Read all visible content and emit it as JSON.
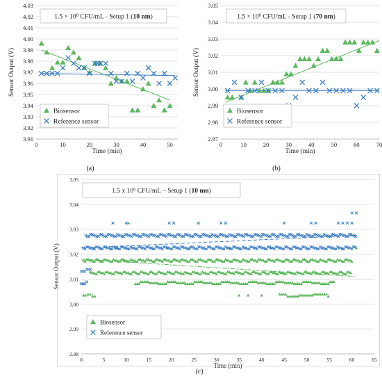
{
  "chart_data": [
    {
      "type": "scatter",
      "panel_label": "(a)",
      "title_parts": {
        "prefix": "1.5 × 10",
        "exp": "8",
        "suffix": " CFU/mL - Setup 1 (",
        "bold": "10 nm",
        "close": ")"
      },
      "xlabel": "Time (min)",
      "ylabel": "Sensor Output  (V)",
      "xlim": [
        0,
        53
      ],
      "ylim": [
        3.91,
        4.03
      ],
      "xticks": [
        0,
        10,
        20,
        30,
        40,
        50
      ],
      "yticks": [
        3.91,
        3.92,
        3.93,
        3.94,
        3.95,
        3.96,
        3.97,
        3.98,
        3.99,
        4.0,
        4.01,
        4.02,
        4.03
      ],
      "ytick_labels": [
        "3.91",
        "3.92",
        "3.93",
        "3.94",
        "3.95",
        "3.96",
        "3.97",
        "3.98",
        "3.99",
        "4.00",
        "4.01",
        "4.02",
        "4.03"
      ],
      "grid": "horizontal",
      "legend": [
        "Biosensor",
        "Reference sensor"
      ],
      "series": [
        {
          "name": "Biosensor",
          "marker": "triangle",
          "color": "#5cb85c",
          "x": [
            2,
            4,
            6,
            8,
            10,
            12,
            14,
            16,
            18,
            20,
            22,
            24,
            26,
            28,
            30,
            32,
            34,
            36,
            38,
            40,
            42,
            44,
            46,
            48,
            50
          ],
          "y": [
            3.996,
            3.988,
            3.974,
            3.979,
            3.979,
            3.992,
            3.988,
            3.983,
            3.974,
            3.97,
            3.978,
            3.978,
            3.974,
            3.96,
            3.965,
            3.962,
            3.962,
            3.936,
            3.936,
            3.955,
            3.96,
            3.94,
            3.945,
            3.936,
            3.94
          ],
          "trend": [
            [
              2,
              3.99
            ],
            [
              50,
              3.945
            ]
          ]
        },
        {
          "name": "Reference sensor",
          "marker": "x",
          "color": "#3a7cc4",
          "x": [
            2,
            4,
            6,
            8,
            10,
            12,
            14,
            16,
            18,
            20,
            22,
            23,
            24,
            26,
            28,
            30,
            32,
            34,
            36,
            38,
            40,
            42,
            44,
            46,
            48,
            50,
            52
          ],
          "y": [
            3.969,
            3.969,
            3.969,
            3.969,
            3.974,
            3.983,
            3.978,
            3.974,
            3.974,
            3.969,
            3.978,
            3.978,
            3.978,
            3.978,
            3.969,
            3.962,
            3.962,
            3.969,
            3.962,
            3.969,
            3.965,
            3.974,
            3.969,
            3.96,
            3.969,
            3.96,
            3.965
          ],
          "trend": [
            [
              2,
              3.969
            ],
            [
              52,
              3.967
            ]
          ]
        }
      ]
    },
    {
      "type": "scatter",
      "panel_label": "(b)",
      "title_parts": {
        "prefix": "1.5 × 10",
        "exp": "8",
        "suffix": " CFU/mL - Setup 1 (",
        "bold": "70 nm",
        "close": ")"
      },
      "xlabel": "Time (min)",
      "ylabel": "Sensor Output  (V)",
      "xlim": [
        0,
        70
      ],
      "ylim": [
        2.97,
        3.05
      ],
      "xticks": [
        0,
        10,
        20,
        30,
        40,
        50,
        60,
        70
      ],
      "yticks": [
        2.97,
        2.98,
        2.99,
        3.0,
        3.01,
        3.02,
        3.03,
        3.04,
        3.05
      ],
      "ytick_labels": [
        "2.97",
        "2.98",
        "2.99",
        "3.00",
        "3.01",
        "3.02",
        "3.03",
        "3.04",
        "3.05"
      ],
      "grid": "horizontal",
      "legend": [
        "Biosensor",
        "Reference sensor"
      ],
      "series": [
        {
          "name": "Biosensor",
          "marker": "triangle",
          "color": "#5cb85c",
          "x": [
            3,
            5,
            9,
            11,
            13,
            15,
            17,
            19,
            21,
            23,
            25,
            27,
            29,
            31,
            33,
            35,
            37,
            39,
            41,
            43,
            45,
            47,
            49,
            51,
            53,
            55,
            57,
            59,
            61,
            63,
            65,
            67,
            69
          ],
          "y": [
            2.995,
            2.995,
            2.995,
            3.004,
            2.999,
            3.004,
            2.999,
            2.999,
            2.999,
            3.004,
            3.004,
            3.004,
            3.009,
            3.009,
            3.014,
            3.018,
            3.018,
            3.018,
            3.014,
            3.018,
            3.023,
            3.023,
            3.018,
            3.018,
            3.018,
            3.028,
            3.028,
            3.028,
            3.023,
            3.028,
            3.028,
            3.028,
            3.023
          ],
          "trend": [
            [
              2,
              2.992
            ],
            [
              70,
              3.029
            ]
          ]
        },
        {
          "name": "Reference sensor",
          "marker": "x",
          "color": "#3a7cc4",
          "x": [
            3,
            6,
            9,
            12,
            15,
            18,
            21,
            24,
            27,
            30,
            33,
            36,
            39,
            42,
            45,
            48,
            51,
            54,
            57,
            60,
            63,
            66,
            69
          ],
          "y": [
            2.999,
            3.004,
            2.995,
            2.999,
            2.999,
            3.004,
            2.999,
            2.999,
            2.999,
            2.99,
            2.995,
            3.004,
            2.999,
            2.999,
            3.004,
            2.999,
            2.999,
            2.999,
            2.999,
            2.99,
            2.995,
            2.999,
            2.999
          ],
          "trend": [
            [
              2,
              2.999
            ],
            [
              70,
              2.999
            ]
          ]
        }
      ]
    },
    {
      "type": "scatter",
      "panel_label": "(c)",
      "title_parts": {
        "prefix": "1.5 x 10",
        "exp": "6",
        "suffix": " CFU/mL – Setup 1 (",
        "bold": "10 nm",
        "close": ")"
      },
      "xlabel": "Time (min)",
      "ylabel": "Sensor Output (V)",
      "xlim": [
        0,
        65
      ],
      "ylim": [
        2.98,
        3.05
      ],
      "xticks": [
        0,
        5,
        10,
        15,
        20,
        25,
        30,
        35,
        40,
        45,
        50,
        55,
        60,
        65
      ],
      "yticks": [
        2.98,
        2.99,
        3.0,
        3.01,
        3.02,
        3.03,
        3.04,
        3.05
      ],
      "ytick_labels": [
        "2.98",
        "2.99",
        "3.00",
        "3.01",
        "3.02",
        "3.03",
        "3.04",
        "3.05"
      ],
      "grid": "horizontal",
      "legend": [
        "Biosensor",
        "Reference sensor"
      ],
      "series": [
        {
          "name": "Biosensor",
          "marker": "triangle",
          "color": "#5cb85c",
          "bands": [
            {
              "x": [
                0.5,
                60
              ],
              "y": 3.0175,
              "step": 0.35
            },
            {
              "x": [
                2,
                60
              ],
              "y": 3.0125,
              "step": 0.35
            },
            {
              "x": [
                12,
                56
              ],
              "y": 3.0085,
              "step": 0.4
            },
            {
              "x": [
                0.5,
                3
              ],
              "y": 3.0035,
              "step": 0.5
            },
            {
              "x": [
                44,
                55
              ],
              "y": 3.0035,
              "step": 0.45
            }
          ],
          "extra_points": [
            [
              10.5,
              3.0325
            ],
            [
              8,
              3.0225
            ],
            [
              19,
              3.0225
            ],
            [
              24,
              3.0225
            ],
            [
              33,
              3.0225
            ],
            [
              42,
              3.0225
            ],
            [
              61,
              3.0225
            ],
            [
              35,
              3.0035
            ],
            [
              37,
              3.0035
            ],
            [
              40,
              3.0035
            ]
          ],
          "trend": [
            [
              0,
              3.018
            ],
            [
              61,
              3.011
            ]
          ]
        },
        {
          "name": "Reference sensor",
          "marker": "x",
          "color": "#3a7cc4",
          "bands": [
            {
              "x": [
                1,
                61
              ],
              "y": 3.0275,
              "step": 0.35
            },
            {
              "x": [
                0.5,
                61
              ],
              "y": 3.0225,
              "step": 0.35
            },
            {
              "x": [
                0,
                2
              ],
              "y": 3.0135,
              "step": 0.4
            },
            {
              "x": [
                0,
                1.5
              ],
              "y": 3.0085,
              "step": 0.4
            }
          ],
          "extra_points": [
            [
              7,
              3.0325
            ],
            [
              10,
              3.0325
            ],
            [
              19.5,
              3.0325
            ],
            [
              20.5,
              3.0325
            ],
            [
              26,
              3.0325
            ],
            [
              31,
              3.0325
            ],
            [
              32,
              3.0325
            ],
            [
              45,
              3.0325
            ],
            [
              51,
              3.0325
            ],
            [
              52,
              3.0325
            ],
            [
              57,
              3.0325
            ],
            [
              58,
              3.0325
            ],
            [
              59,
              3.0325
            ],
            [
              60,
              3.0325
            ],
            [
              60,
              3.0365
            ],
            [
              61,
              3.0365
            ]
          ],
          "trend": [
            [
              0,
              3.0225
            ],
            [
              61,
              3.0275
            ]
          ]
        }
      ]
    }
  ]
}
